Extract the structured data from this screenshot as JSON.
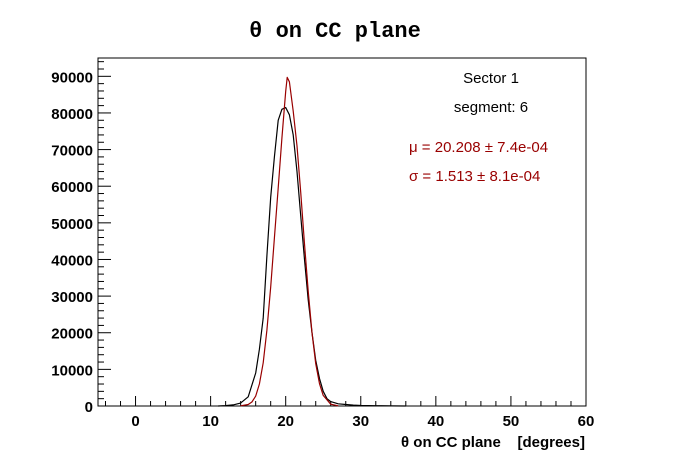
{
  "chart_data": {
    "type": "line",
    "title": "θ on CC plane",
    "xlabel": "θ on CC plane    [degrees]",
    "ylabel": "",
    "xlim": [
      -5,
      60
    ],
    "ylim": [
      0,
      95000
    ],
    "x_ticks": [
      0,
      10,
      20,
      30,
      40,
      50,
      60
    ],
    "x_tick_labels": [
      "0",
      "10",
      "20",
      "30",
      "40",
      "50",
      "60"
    ],
    "y_ticks": [
      0,
      10000,
      20000,
      30000,
      40000,
      50000,
      60000,
      70000,
      80000,
      90000
    ],
    "y_tick_labels": [
      "0",
      "10000",
      "20000",
      "30000",
      "40000",
      "50000",
      "60000",
      "70000",
      "80000",
      "90000"
    ],
    "grid": false,
    "annotations": {
      "sector": "Sector 1",
      "segment": "segment: 6",
      "mu": "μ = 20.208 ± 7.4e-04",
      "sigma": "σ = 1.513 ± 8.1e-04"
    },
    "series": [
      {
        "color": "#000000",
        "x": [
          11,
          12,
          13,
          14,
          15,
          16,
          16.5,
          17,
          17.5,
          18,
          18.5,
          19,
          19.5,
          20,
          20.5,
          21,
          21.5,
          22,
          22.5,
          23,
          23.5,
          24,
          24.5,
          25,
          25.5,
          26,
          27,
          28,
          29,
          30,
          32,
          34,
          36
        ],
        "y": [
          0,
          100,
          300,
          800,
          2500,
          9000,
          15500,
          24000,
          41000,
          57000,
          68000,
          78000,
          81000,
          81500,
          79500,
          74000,
          64000,
          52000,
          40000,
          29000,
          20000,
          12500,
          7500,
          4000,
          2000,
          1200,
          600,
          400,
          250,
          150,
          80,
          30,
          0
        ]
      },
      {
        "color": "#990000",
        "x": [
          14,
          15,
          15.5,
          16,
          16.5,
          17,
          17.5,
          18,
          18.5,
          19,
          19.5,
          20,
          20.2,
          20.5,
          21,
          21.5,
          22,
          22.5,
          23,
          23.5,
          24,
          24.5,
          25,
          26,
          27
        ],
        "y": [
          50,
          400,
          1100,
          2700,
          6000,
          11800,
          20700,
          32500,
          45900,
          59500,
          73100,
          85900,
          89700,
          88500,
          80500,
          71000,
          58400,
          44200,
          31400,
          20000,
          11600,
          6100,
          2900,
          500,
          50
        ]
      }
    ]
  }
}
